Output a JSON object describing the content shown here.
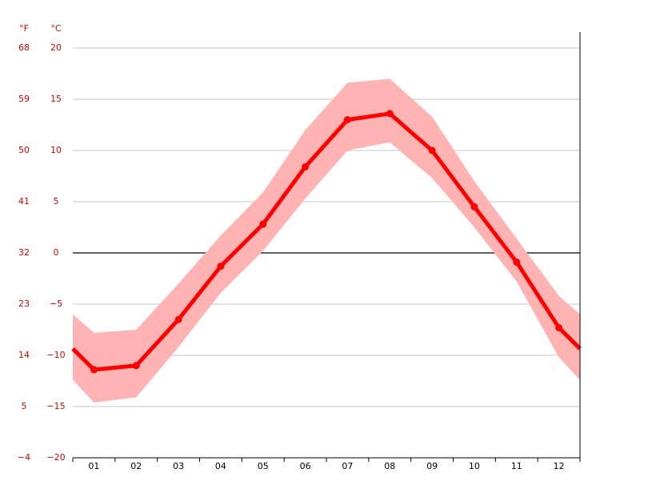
{
  "chart_data": {
    "type": "line",
    "y2_header": "°F",
    "y_header": "°C",
    "categories": [
      "01",
      "02",
      "03",
      "04",
      "05",
      "06",
      "07",
      "08",
      "09",
      "10",
      "11",
      "12"
    ],
    "series": [
      {
        "color": "#ff0000",
        "values": [
          -11.4,
          -11.0,
          -6.5,
          -1.3,
          2.8,
          8.4,
          13.0,
          13.6,
          10.0,
          4.5,
          -0.9,
          -7.3
        ]
      }
    ],
    "band": {
      "color": "#ffb3b3",
      "max": [
        -7.8,
        -7.5,
        -3.0,
        1.7,
        5.9,
        12.0,
        16.6,
        17.0,
        13.3,
        7.0,
        1.4,
        -4.2
      ],
      "min": [
        -14.6,
        -14.1,
        -9.2,
        -3.9,
        0.2,
        5.3,
        10.0,
        10.8,
        7.3,
        2.5,
        -2.8,
        -10.2
      ]
    },
    "ylim": [
      -20,
      20
    ],
    "yticks": [
      20,
      15,
      10,
      5,
      0,
      {
        "value": -5,
        "label": "−5"
      },
      {
        "value": -10,
        "label": "−10"
      },
      {
        "value": -15,
        "label": "−15"
      },
      {
        "value": -20,
        "label": "−20"
      }
    ],
    "y2lim": [
      -4,
      68
    ],
    "y2ticks": [
      68,
      59,
      50,
      41,
      32,
      23,
      14,
      5,
      {
        "value": -4,
        "label": "−4"
      }
    ],
    "grid": true
  }
}
